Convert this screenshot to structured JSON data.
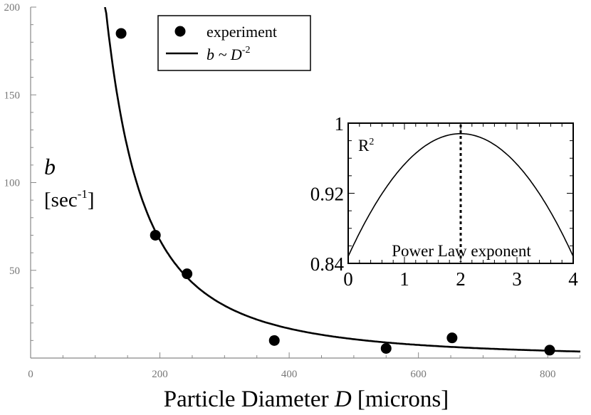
{
  "chart_data": [
    {
      "type": "scatter",
      "xlabel_prefix": "Particle Diameter ",
      "xlabel_var": "D",
      "xlabel_suffix": " [microns]",
      "ylabel_var": "b",
      "ylabel_unit": "[sec",
      "ylabel_unit_exp": "-1",
      "ylabel_unit_close": "]",
      "xlim": [
        0,
        900
      ],
      "ylim": [
        0,
        200
      ],
      "x_ticks": [
        0,
        200,
        400,
        600,
        800
      ],
      "y_ticks": [
        50,
        100,
        150,
        200
      ],
      "grid": false,
      "legend_position": "top-center",
      "series": [
        {
          "name": "experiment",
          "kind": "points",
          "color": "#000000",
          "x": [
            140,
            193,
            242,
            377,
            550,
            652,
            803
          ],
          "y": [
            185,
            70,
            48,
            10,
            5.5,
            11.5,
            4.5
          ]
        },
        {
          "name_prefix": "b ~ D",
          "name_exp": "-2",
          "kind": "curve",
          "color": "#000000",
          "coefficient": 2690000,
          "exponent": -2,
          "x_start": 115,
          "x_end": 900
        }
      ]
    },
    {
      "type": "line",
      "title": "R",
      "title_exp": "2",
      "xlabel": "Power Law exponent",
      "xlim": [
        0,
        4
      ],
      "ylim": [
        0.84,
        1
      ],
      "x_ticks": [
        0,
        1,
        2,
        3,
        4
      ],
      "y_ticks": [
        0.84,
        0.92,
        1
      ],
      "y_tick_labels": [
        "0.84",
        "0.92",
        "1"
      ],
      "peak_x": 2,
      "peak_y": 0.988,
      "edge_y": 0.848,
      "marker_x": 2,
      "marker_style": "dotted"
    }
  ]
}
